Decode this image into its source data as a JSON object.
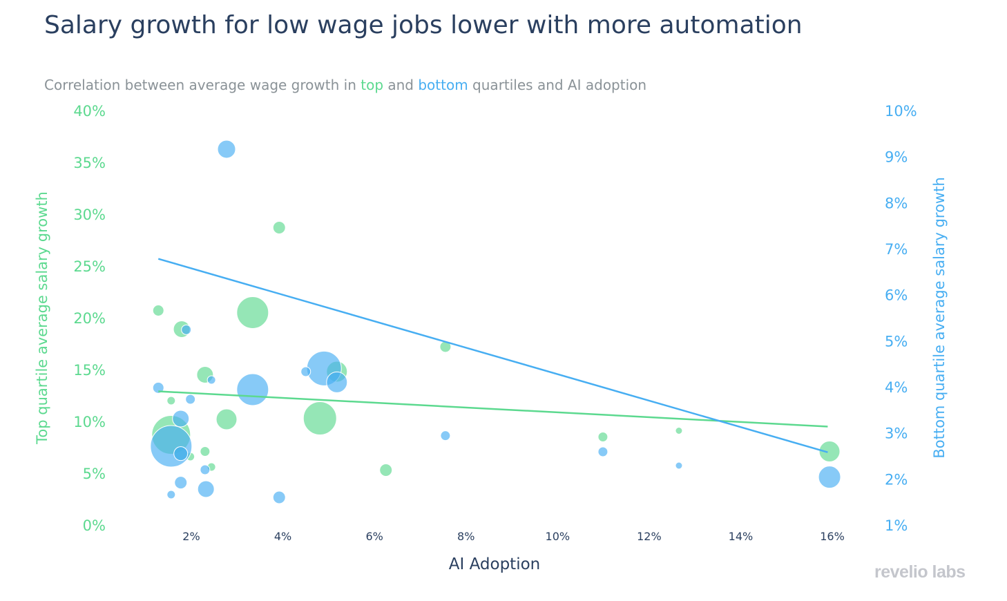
{
  "title": "Salary growth for low wage jobs lower with more automation",
  "subtitle": {
    "prefix": "Correlation between average wage growth in ",
    "top_word": "top",
    "middle": " and ",
    "bottom_word": "bottom",
    "suffix": " quartiles and AI adoption"
  },
  "logo": "revelio labs",
  "colors": {
    "top": "#5cd98f",
    "bottom": "#47aef2",
    "title": "#2a3f5f",
    "subtitle": "#8a9297"
  },
  "chart_data": {
    "type": "scatter",
    "xlabel": "AI Adoption",
    "ylabel_left": "Top quartile average salary growth",
    "ylabel_right": "Bottom quartile average salary growth",
    "xlim": [
      0,
      16.5
    ],
    "ylim_left": [
      0,
      40
    ],
    "ylim_right": [
      1,
      10
    ],
    "x_ticks": [
      "2%",
      "4%",
      "6%",
      "8%",
      "10%",
      "12%",
      "14%",
      "16%"
    ],
    "x_tick_values": [
      2,
      4,
      6,
      8,
      10,
      12,
      14,
      16
    ],
    "y_left_ticks": [
      "0%",
      "5%",
      "10%",
      "15%",
      "20%",
      "25%",
      "30%",
      "35%",
      "40%"
    ],
    "y_left_tick_values": [
      0,
      5,
      10,
      15,
      20,
      25,
      30,
      35,
      40
    ],
    "y_right_ticks": [
      "1%",
      "2%",
      "3%",
      "4%",
      "5%",
      "6%",
      "7%",
      "8%",
      "9%",
      "10%"
    ],
    "y_right_tick_values": [
      1,
      2,
      3,
      4,
      5,
      6,
      7,
      8,
      9,
      10
    ],
    "series": [
      {
        "name": "top",
        "axis": "left",
        "points": [
          {
            "x": 1.28,
            "y": 20.7,
            "size": 8
          },
          {
            "x": 1.79,
            "y": 18.9,
            "size": 12
          },
          {
            "x": 3.34,
            "y": 20.5,
            "size": 23
          },
          {
            "x": 2.3,
            "y": 14.5,
            "size": 12
          },
          {
            "x": 2.77,
            "y": 10.2,
            "size": 15
          },
          {
            "x": 1.56,
            "y": 12.0,
            "size": 6
          },
          {
            "x": 1.56,
            "y": 8.7,
            "size": 28
          },
          {
            "x": 1.77,
            "y": 6.9,
            "size": 10
          },
          {
            "x": 1.98,
            "y": 6.6,
            "size": 6
          },
          {
            "x": 2.3,
            "y": 7.1,
            "size": 7
          },
          {
            "x": 2.44,
            "y": 5.6,
            "size": 6
          },
          {
            "x": 3.92,
            "y": 28.7,
            "size": 9
          },
          {
            "x": 4.81,
            "y": 10.3,
            "size": 24
          },
          {
            "x": 5.18,
            "y": 14.8,
            "size": 15
          },
          {
            "x": 6.25,
            "y": 5.3,
            "size": 9
          },
          {
            "x": 7.55,
            "y": 17.2,
            "size": 8
          },
          {
            "x": 10.99,
            "y": 8.5,
            "size": 7
          },
          {
            "x": 12.65,
            "y": 9.1,
            "size": 5
          },
          {
            "x": 15.94,
            "y": 7.1,
            "size": 15
          }
        ],
        "trend": [
          [
            1.28,
            12.9
          ],
          [
            15.9,
            9.5
          ]
        ]
      },
      {
        "name": "bottom",
        "axis": "right",
        "points": [
          {
            "x": 1.28,
            "y": 3.98,
            "size": 8
          },
          {
            "x": 1.89,
            "y": 5.24,
            "size": 7
          },
          {
            "x": 2.44,
            "y": 4.15,
            "size": 6
          },
          {
            "x": 1.98,
            "y": 3.73,
            "size": 7
          },
          {
            "x": 1.77,
            "y": 3.31,
            "size": 12
          },
          {
            "x": 1.56,
            "y": 2.71,
            "size": 30
          },
          {
            "x": 1.77,
            "y": 2.55,
            "size": 10
          },
          {
            "x": 1.77,
            "y": 1.92,
            "size": 9
          },
          {
            "x": 2.3,
            "y": 2.2,
            "size": 7
          },
          {
            "x": 2.32,
            "y": 1.78,
            "size": 12
          },
          {
            "x": 1.56,
            "y": 1.66,
            "size": 6
          },
          {
            "x": 3.92,
            "y": 1.6,
            "size": 9
          },
          {
            "x": 4.5,
            "y": 4.33,
            "size": 7
          },
          {
            "x": 4.9,
            "y": 4.4,
            "size": 25
          },
          {
            "x": 5.18,
            "y": 4.1,
            "size": 15
          },
          {
            "x": 3.34,
            "y": 3.94,
            "size": 23
          },
          {
            "x": 2.77,
            "y": 9.16,
            "size": 13
          },
          {
            "x": 7.55,
            "y": 2.94,
            "size": 7
          },
          {
            "x": 10.99,
            "y": 2.59,
            "size": 7
          },
          {
            "x": 12.65,
            "y": 2.29,
            "size": 5
          },
          {
            "x": 15.94,
            "y": 2.04,
            "size": 16
          }
        ],
        "trend": [
          [
            1.28,
            6.78
          ],
          [
            15.9,
            2.58
          ]
        ]
      }
    ]
  }
}
